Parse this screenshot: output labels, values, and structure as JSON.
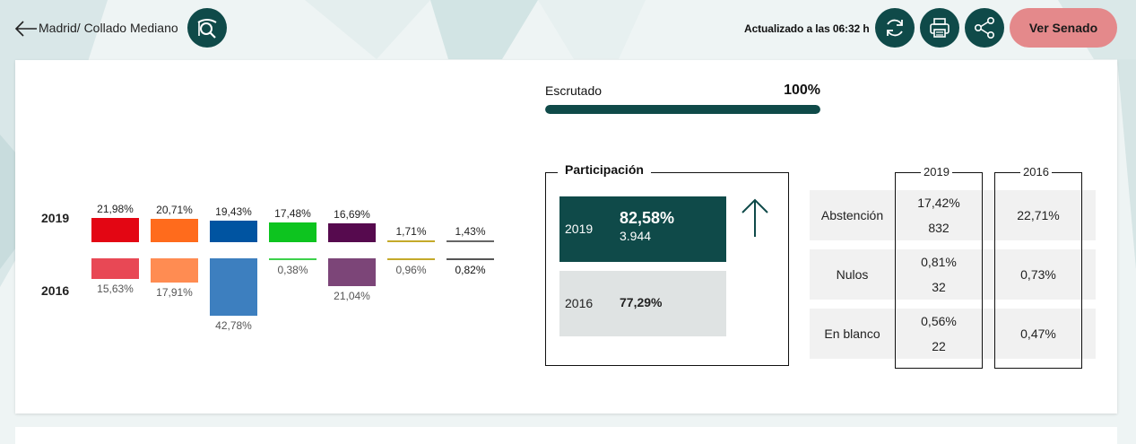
{
  "header": {
    "location": "Madrid/ Collado Mediano",
    "updated": "Actualizado a las 06:32 h",
    "senado_label": "Ver Senado"
  },
  "colors": {
    "accent": "#0f4a49",
    "senado_button": "#e4898b"
  },
  "years": {
    "current": "2019",
    "previous": "2016"
  },
  "chart_data": {
    "type": "bar",
    "series": [
      {
        "name": "2019",
        "labels": [
          "21,98%",
          "20,71%",
          "19,43%",
          "17,48%",
          "16,69%",
          "1,71%",
          "1,43%"
        ],
        "values": [
          21.98,
          20.71,
          19.43,
          17.48,
          16.69,
          1.71,
          1.43
        ]
      },
      {
        "name": "2016",
        "labels": [
          "15,63%",
          "17,91%",
          "42,78%",
          "0,38%",
          "21,04%",
          "0,96%",
          "0,82%"
        ],
        "values": [
          15.63,
          17.91,
          42.78,
          0.38,
          21.04,
          0.96,
          0.82
        ]
      }
    ],
    "colors_2019": [
      "#e30613",
      "#ff6b1c",
      "#0054a1",
      "#0dc41f",
      "#560a4e",
      "#c4aa2a",
      "#666666"
    ],
    "colors_2016": [
      "#e84855",
      "#ff8c52",
      "#3d7fbf",
      "#3dd14b",
      "#7c4578",
      "#c4aa2a",
      "#555555"
    ]
  },
  "escrutado": {
    "label": "Escrutado",
    "value": "100%",
    "progress": 1.0
  },
  "participacion": {
    "title": "Participación",
    "current": {
      "year": "2019",
      "pct": "82,58%",
      "votes": "3.944"
    },
    "previous": {
      "year": "2016",
      "pct": "77,29%"
    },
    "trend_icon": "arrow-up-icon"
  },
  "stats": {
    "col_2019": "2019",
    "col_2016": "2016",
    "rows": [
      {
        "label": "Abstención",
        "pct_2019": "17,42%",
        "count_2019": "832",
        "pct_2016": "22,71%"
      },
      {
        "label": "Nulos",
        "pct_2019": "0,81%",
        "count_2019": "32",
        "pct_2016": "0,73%"
      },
      {
        "label": "En blanco",
        "pct_2019": "0,56%",
        "count_2019": "22",
        "pct_2016": "0,47%"
      }
    ]
  },
  "icons": {
    "back": "back-arrow-icon",
    "search": "search-location-icon",
    "refresh": "refresh-icon",
    "print": "print-icon",
    "share": "share-icon"
  }
}
